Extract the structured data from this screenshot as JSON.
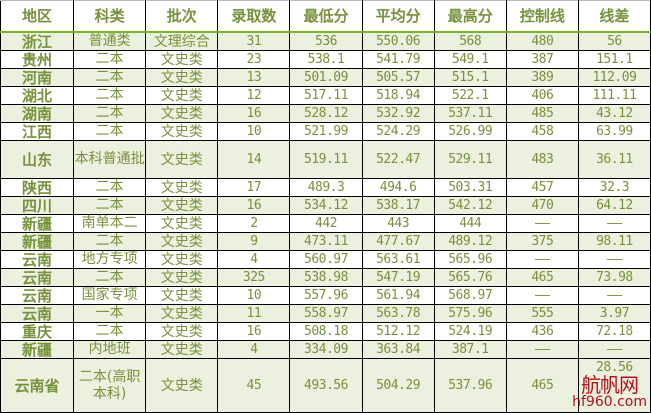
{
  "table": {
    "headers": [
      "地区",
      "科类",
      "批次",
      "录取数",
      "最低分",
      "平均分",
      "最高分",
      "控制线",
      "线差"
    ],
    "rows": [
      {
        "region": "浙江",
        "category": "普通类",
        "batch": "文理综合",
        "count": "31",
        "min": "536",
        "avg": "550.06",
        "max": "568",
        "control": "480",
        "diff": "56",
        "shade": "green"
      },
      {
        "region": "贵州",
        "category": "二本",
        "batch": "文史类",
        "count": "23",
        "min": "538.1",
        "avg": "541.79",
        "max": "549.1",
        "control": "387",
        "diff": "151.1",
        "shade": "white"
      },
      {
        "region": "河南",
        "category": "二本",
        "batch": "文史类",
        "count": "13",
        "min": "501.09",
        "avg": "505.57",
        "max": "515.1",
        "control": "389",
        "diff": "112.09",
        "shade": "green"
      },
      {
        "region": "湖北",
        "category": "二本",
        "batch": "文史类",
        "count": "12",
        "min": "517.11",
        "avg": "518.94",
        "max": "522.1",
        "control": "406",
        "diff": "111.11",
        "shade": "white"
      },
      {
        "region": "湖南",
        "category": "二本",
        "batch": "文史类",
        "count": "16",
        "min": "528.12",
        "avg": "532.92",
        "max": "537.11",
        "control": "485",
        "diff": "43.12",
        "shade": "green"
      },
      {
        "region": "江西",
        "category": "二本",
        "batch": "文史类",
        "count": "10",
        "min": "521.99",
        "avg": "524.29",
        "max": "526.99",
        "control": "458",
        "diff": "63.99",
        "shade": "white"
      },
      {
        "region": "山东",
        "category": "本科普通批",
        "batch": "文史类",
        "count": "14",
        "min": "519.11",
        "avg": "522.47",
        "max": "529.11",
        "control": "483",
        "diff": "36.11",
        "shade": "green",
        "tall": true
      },
      {
        "region": "陕西",
        "category": "二本",
        "batch": "文史类",
        "count": "17",
        "min": "489.3",
        "avg": "494.6",
        "max": "503.31",
        "control": "457",
        "diff": "32.3",
        "shade": "white"
      },
      {
        "region": "四川",
        "category": "二本",
        "batch": "文史类",
        "count": "16",
        "min": "534.12",
        "avg": "538.17",
        "max": "542.12",
        "control": "470",
        "diff": "64.12",
        "shade": "green"
      },
      {
        "region": "新疆",
        "category": "南单本二",
        "batch": "文史类",
        "count": "2",
        "min": "442",
        "avg": "443",
        "max": "444",
        "control": "——",
        "diff": "——",
        "shade": "white"
      },
      {
        "region": "新疆",
        "category": "二本",
        "batch": "文史类",
        "count": "9",
        "min": "473.11",
        "avg": "477.67",
        "max": "489.12",
        "control": "375",
        "diff": "98.11",
        "shade": "green"
      },
      {
        "region": "云南",
        "category": "地方专项",
        "batch": "文史类",
        "count": "4",
        "min": "560.97",
        "avg": "563.61",
        "max": "565.96",
        "control": "——",
        "diff": "——",
        "shade": "white"
      },
      {
        "region": "云南",
        "category": "二本",
        "batch": "文史类",
        "count": "325",
        "min": "538.98",
        "avg": "547.19",
        "max": "565.76",
        "control": "465",
        "diff": "73.98",
        "shade": "green"
      },
      {
        "region": "云南",
        "category": "国家专项",
        "batch": "文史类",
        "count": "10",
        "min": "557.96",
        "avg": "561.94",
        "max": "568.97",
        "control": "——",
        "diff": "——",
        "shade": "white"
      },
      {
        "region": "云南",
        "category": "一本",
        "batch": "文史类",
        "count": "11",
        "min": "558.97",
        "avg": "563.78",
        "max": "575.96",
        "control": "555",
        "diff": "3.97",
        "shade": "green"
      },
      {
        "region": "重庆",
        "category": "二本",
        "batch": "文史类",
        "count": "16",
        "min": "508.18",
        "avg": "512.12",
        "max": "524.19",
        "control": "436",
        "diff": "72.18",
        "shade": "white"
      },
      {
        "region": "新疆",
        "category": "内地班",
        "batch": "文史类",
        "count": "4",
        "min": "334.09",
        "avg": "363.84",
        "max": "387.1",
        "control": "——",
        "diff": "——",
        "shade": "green"
      },
      {
        "region": "云南省",
        "category": "二本(高职本科)",
        "batch": "文史类",
        "count": "45",
        "min": "493.56",
        "avg": "504.29",
        "max": "537.96",
        "control": "465",
        "diff": "28.56",
        "shade": "green",
        "tall": true
      }
    ]
  },
  "watermark": {
    "name": "航帆网",
    "url": "hf960.com"
  },
  "colors": {
    "text": "#76923c",
    "row_fill": "#ebf1de",
    "header_rule": "#76b532",
    "watermark": "#b3121b"
  }
}
